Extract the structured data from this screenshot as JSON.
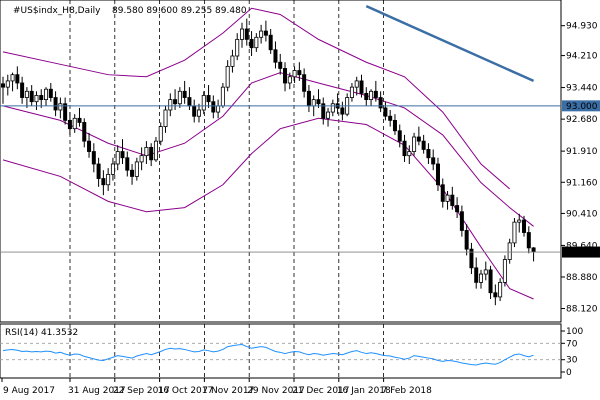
{
  "header": {
    "title": "#US$indx_H8,Daily",
    "ohlc": "89.580 89.600 89.255 89.480"
  },
  "rsi_header": "RSI(14) 41.3532",
  "horizontal_line": {
    "value": 93.0,
    "label": "93.000",
    "color": "#3a6ea5"
  },
  "current_price": {
    "value": 89.48,
    "label": "89.480",
    "color": "#808080"
  },
  "colors": {
    "candles": "#000000",
    "bands": "#8b008b",
    "trendline": "#3a6ea5",
    "rsi": "#1e90ff",
    "grid_dash": "#000000",
    "rsi_levels": "#a0a0a0"
  },
  "chart_data": [
    {
      "type": "candlestick",
      "title": "#US$indx_H8,Daily",
      "ylim": [
        87.82,
        95.5
      ],
      "y_ticks": [
        "94.930",
        "94.210",
        "93.440",
        "92.680",
        "91.910",
        "91.160",
        "90.410",
        "89.640",
        "88.880",
        "88.120"
      ],
      "y_tick_values": [
        94.93,
        94.21,
        93.44,
        92.68,
        91.91,
        91.16,
        90.41,
        89.64,
        88.88,
        88.12
      ],
      "x_ticks": [
        "9 Aug 2017",
        "31 Aug 2017",
        "22 Sep 2017",
        "16 Oct 2017",
        "7 Nov 2017",
        "29 Nov 2017",
        "21 Dec 2017",
        "16 Jan 2018",
        "7 Feb 2018"
      ],
      "candles": [
        [
          93.53,
          93.7,
          93.05,
          93.45
        ],
        [
          93.45,
          93.75,
          93.25,
          93.6
        ],
        [
          93.6,
          93.8,
          93.35,
          93.75
        ],
        [
          93.75,
          93.95,
          93.4,
          93.55
        ],
        [
          93.55,
          93.7,
          93.05,
          93.2
        ],
        [
          93.2,
          93.45,
          92.95,
          93.35
        ],
        [
          93.35,
          93.5,
          93.0,
          93.1
        ],
        [
          93.1,
          93.35,
          92.9,
          93.25
        ],
        [
          93.25,
          93.4,
          92.95,
          93.15
        ],
        [
          93.15,
          93.45,
          93.0,
          93.4
        ],
        [
          93.4,
          93.55,
          93.1,
          93.2
        ],
        [
          93.2,
          93.35,
          92.75,
          92.9
        ],
        [
          92.9,
          93.2,
          92.7,
          93.05
        ],
        [
          93.05,
          93.2,
          92.55,
          92.65
        ],
        [
          92.65,
          92.85,
          92.3,
          92.45
        ],
        [
          92.45,
          92.8,
          92.35,
          92.7
        ],
        [
          92.7,
          92.95,
          92.5,
          92.6
        ],
        [
          92.6,
          92.7,
          92.0,
          92.15
        ],
        [
          92.15,
          92.35,
          91.75,
          91.9
        ],
        [
          91.9,
          92.1,
          91.4,
          91.6
        ],
        [
          91.6,
          91.75,
          91.05,
          91.25
        ],
        [
          91.25,
          91.45,
          90.85,
          91.1
        ],
        [
          91.1,
          91.5,
          90.95,
          91.35
        ],
        [
          91.35,
          91.75,
          91.2,
          91.6
        ],
        [
          91.6,
          92.05,
          91.45,
          91.9
        ],
        [
          91.9,
          92.2,
          91.6,
          91.75
        ],
        [
          91.75,
          91.9,
          91.3,
          91.45
        ],
        [
          91.45,
          91.6,
          91.1,
          91.3
        ],
        [
          91.3,
          91.75,
          91.2,
          91.65
        ],
        [
          91.65,
          92.0,
          91.45,
          91.8
        ],
        [
          91.8,
          92.15,
          91.6,
          92.0
        ],
        [
          92.0,
          92.1,
          91.55,
          91.7
        ],
        [
          91.7,
          92.25,
          91.65,
          92.15
        ],
        [
          92.15,
          92.6,
          92.05,
          92.5
        ],
        [
          92.5,
          93.0,
          92.35,
          92.9
        ],
        [
          92.9,
          93.3,
          92.75,
          93.15
        ],
        [
          93.15,
          93.4,
          92.9,
          93.05
        ],
        [
          93.05,
          93.45,
          92.95,
          93.35
        ],
        [
          93.35,
          93.6,
          93.05,
          93.2
        ],
        [
          93.2,
          93.45,
          92.9,
          93.0
        ],
        [
          93.0,
          93.15,
          92.6,
          92.75
        ],
        [
          92.75,
          93.05,
          92.6,
          92.9
        ],
        [
          92.9,
          93.35,
          92.8,
          93.25
        ],
        [
          93.25,
          93.5,
          92.95,
          93.1
        ],
        [
          93.1,
          93.25,
          92.7,
          92.85
        ],
        [
          92.85,
          93.15,
          92.7,
          93.0
        ],
        [
          93.0,
          93.55,
          92.95,
          93.45
        ],
        [
          93.45,
          94.1,
          93.35,
          93.95
        ],
        [
          93.95,
          94.35,
          93.8,
          94.2
        ],
        [
          94.2,
          94.75,
          94.1,
          94.6
        ],
        [
          94.6,
          95.0,
          94.4,
          94.85
        ],
        [
          94.85,
          95.1,
          94.45,
          94.6
        ],
        [
          94.6,
          94.8,
          94.2,
          94.4
        ],
        [
          94.4,
          94.75,
          94.3,
          94.65
        ],
        [
          94.65,
          94.95,
          94.5,
          94.8
        ],
        [
          94.8,
          95.05,
          94.55,
          94.7
        ],
        [
          94.7,
          94.85,
          94.25,
          94.35
        ],
        [
          94.35,
          94.55,
          93.9,
          94.05
        ],
        [
          94.05,
          94.25,
          93.75,
          93.9
        ],
        [
          93.9,
          94.05,
          93.35,
          93.55
        ],
        [
          93.55,
          93.8,
          93.4,
          93.7
        ],
        [
          93.7,
          93.95,
          93.55,
          93.85
        ],
        [
          93.85,
          94.05,
          93.6,
          93.75
        ],
        [
          93.75,
          93.9,
          93.2,
          93.35
        ],
        [
          93.35,
          93.5,
          92.85,
          93.0
        ],
        [
          93.0,
          93.25,
          92.75,
          93.15
        ],
        [
          93.15,
          93.4,
          92.95,
          93.05
        ],
        [
          93.05,
          93.2,
          92.55,
          92.7
        ],
        [
          92.7,
          92.95,
          92.5,
          92.85
        ],
        [
          92.85,
          93.15,
          92.75,
          93.05
        ],
        [
          93.05,
          93.3,
          92.8,
          92.95
        ],
        [
          92.95,
          93.1,
          92.65,
          92.8
        ],
        [
          92.8,
          93.3,
          92.75,
          93.2
        ],
        [
          93.2,
          93.55,
          93.1,
          93.45
        ],
        [
          93.45,
          93.7,
          93.25,
          93.6
        ],
        [
          93.6,
          93.75,
          93.2,
          93.3
        ],
        [
          93.3,
          93.45,
          93.0,
          93.15
        ],
        [
          93.15,
          93.4,
          93.0,
          93.35
        ],
        [
          93.35,
          93.6,
          93.1,
          93.2
        ],
        [
          93.2,
          93.35,
          92.85,
          92.95
        ],
        [
          92.95,
          93.1,
          92.65,
          92.75
        ],
        [
          92.75,
          92.9,
          92.5,
          92.65
        ],
        [
          92.65,
          92.8,
          92.3,
          92.4
        ],
        [
          92.4,
          92.55,
          92.0,
          92.15
        ],
        [
          92.15,
          92.3,
          91.65,
          91.8
        ],
        [
          91.8,
          92.05,
          91.6,
          91.9
        ],
        [
          91.9,
          92.35,
          91.8,
          92.25
        ],
        [
          92.25,
          92.5,
          92.05,
          92.15
        ],
        [
          92.15,
          92.3,
          91.85,
          91.95
        ],
        [
          91.95,
          92.1,
          91.6,
          91.75
        ],
        [
          91.75,
          91.95,
          91.45,
          91.6
        ],
        [
          91.6,
          91.75,
          90.95,
          91.1
        ],
        [
          91.1,
          91.25,
          90.55,
          90.7
        ],
        [
          90.7,
          90.95,
          90.5,
          90.85
        ],
        [
          90.85,
          91.05,
          90.5,
          90.6
        ],
        [
          90.6,
          90.8,
          90.3,
          90.45
        ],
        [
          90.45,
          90.6,
          89.85,
          90.0
        ],
        [
          90.0,
          90.15,
          89.4,
          89.55
        ],
        [
          89.55,
          89.7,
          88.95,
          89.1
        ],
        [
          89.1,
          89.35,
          88.6,
          88.75
        ],
        [
          88.75,
          89.05,
          88.6,
          88.95
        ],
        [
          88.95,
          89.25,
          88.8,
          89.05
        ],
        [
          89.05,
          89.15,
          88.35,
          88.5
        ],
        [
          88.5,
          88.7,
          88.2,
          88.4
        ],
        [
          88.4,
          88.85,
          88.3,
          88.75
        ],
        [
          88.75,
          89.4,
          88.65,
          89.3
        ],
        [
          89.3,
          89.8,
          89.2,
          89.7
        ],
        [
          89.7,
          90.3,
          89.6,
          90.2
        ],
        [
          90.2,
          90.4,
          89.95,
          90.25
        ],
        [
          90.25,
          90.35,
          89.85,
          89.95
        ],
        [
          89.95,
          90.1,
          89.45,
          89.58
        ],
        [
          89.58,
          89.6,
          89.255,
          89.48
        ]
      ],
      "bollinger": {
        "upper": [
          [
            0,
            94.3
          ],
          [
            12,
            94.0
          ],
          [
            22,
            93.75
          ],
          [
            30,
            93.7
          ],
          [
            38,
            94.1
          ],
          [
            46,
            94.75
          ],
          [
            52,
            95.35
          ],
          [
            58,
            95.2
          ],
          [
            66,
            94.6
          ],
          [
            76,
            94.05
          ],
          [
            84,
            93.7
          ],
          [
            92,
            92.85
          ],
          [
            100,
            91.6
          ],
          [
            106,
            91.0
          ]
        ],
        "middle": [
          [
            0,
            93.0
          ],
          [
            12,
            92.65
          ],
          [
            22,
            92.1
          ],
          [
            30,
            91.8
          ],
          [
            38,
            92.1
          ],
          [
            46,
            92.75
          ],
          [
            52,
            93.55
          ],
          [
            58,
            93.8
          ],
          [
            66,
            93.55
          ],
          [
            76,
            93.25
          ],
          [
            84,
            92.95
          ],
          [
            92,
            92.3
          ],
          [
            100,
            91.15
          ],
          [
            106,
            90.55
          ],
          [
            111,
            90.1
          ]
        ],
        "lower": [
          [
            0,
            91.7
          ],
          [
            12,
            91.3
          ],
          [
            22,
            90.7
          ],
          [
            30,
            90.45
          ],
          [
            38,
            90.55
          ],
          [
            46,
            91.1
          ],
          [
            52,
            91.85
          ],
          [
            58,
            92.45
          ],
          [
            66,
            92.7
          ],
          [
            76,
            92.55
          ],
          [
            84,
            92.05
          ],
          [
            92,
            91.0
          ],
          [
            100,
            89.6
          ],
          [
            106,
            88.6
          ],
          [
            111,
            88.35
          ]
        ]
      },
      "trendline": [
        [
          76,
          95.4
        ],
        [
          111,
          93.6
        ]
      ]
    },
    {
      "type": "line",
      "title": "RSI(14) 41.3532",
      "ylim": [
        0,
        100
      ],
      "y_ticks": [
        "100",
        "70",
        "30",
        "0"
      ],
      "levels": [
        70,
        30
      ],
      "values": [
        52,
        54,
        55,
        53,
        50,
        51,
        49,
        50,
        49,
        51,
        50,
        46,
        48,
        44,
        41,
        44,
        43,
        38,
        35,
        32,
        29,
        28,
        32,
        36,
        40,
        38,
        36,
        34,
        39,
        42,
        45,
        42,
        46,
        50,
        55,
        58,
        56,
        57,
        55,
        52,
        49,
        50,
        54,
        52,
        49,
        51,
        55,
        62,
        64,
        66,
        67,
        62,
        58,
        60,
        62,
        60,
        55,
        50,
        48,
        45,
        48,
        50,
        49,
        45,
        42,
        45,
        44,
        41,
        43,
        45,
        44,
        42,
        46,
        50,
        52,
        48,
        45,
        47,
        45,
        42,
        40,
        39,
        36,
        34,
        31,
        34,
        40,
        38,
        36,
        34,
        32,
        28,
        26,
        28,
        27,
        25,
        22,
        20,
        18,
        17,
        20,
        22,
        20,
        19,
        23,
        30,
        36,
        42,
        44,
        40,
        37,
        41
      ]
    }
  ]
}
